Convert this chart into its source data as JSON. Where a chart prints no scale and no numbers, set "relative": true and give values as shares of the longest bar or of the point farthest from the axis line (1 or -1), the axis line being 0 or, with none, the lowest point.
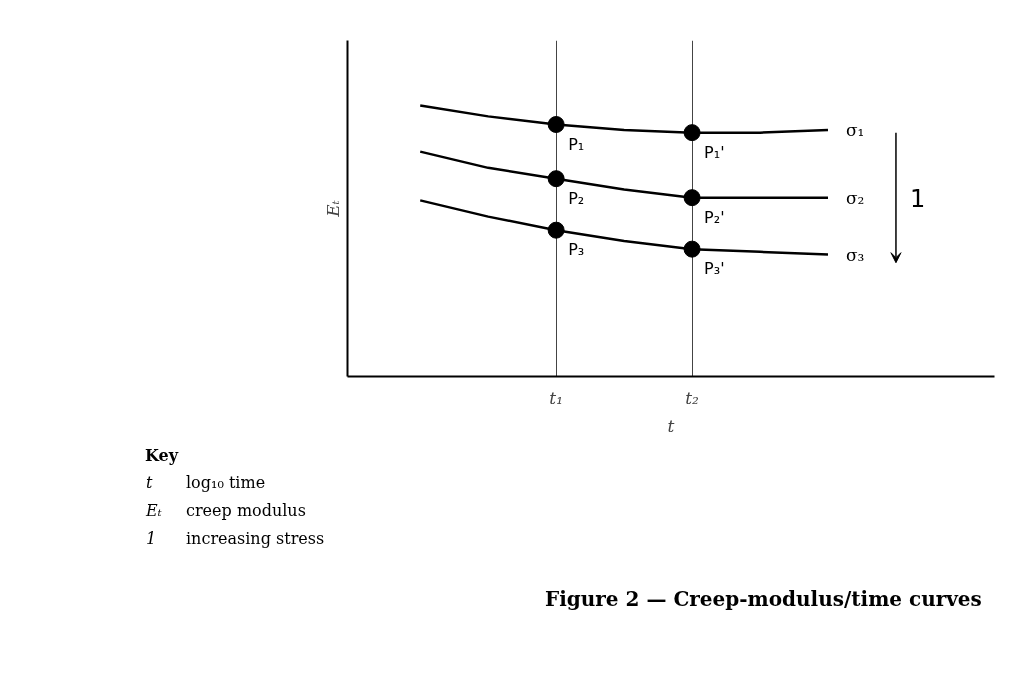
{
  "chart_data": {
    "type": "line",
    "relative": true,
    "title": "Figure 2 — Creep-modulus/time curves",
    "xlabel": "t",
    "ylabel": "Eₜ",
    "categories": [
      null,
      null,
      "t₁",
      null,
      "t₂",
      null,
      null
    ],
    "series": [
      {
        "name": "σ₁",
        "color": "#000000",
        "values": [
          1,
          0.96,
          0.93,
          0.91,
          0.9,
          0.9,
          0.91
        ]
      },
      {
        "name": "σ₂",
        "color": "#000000",
        "values": [
          0.83,
          0.77,
          0.73,
          0.69,
          0.66,
          0.66,
          0.66
        ]
      },
      {
        "name": "σ₃",
        "color": "#000000",
        "values": [
          0.65,
          0.59,
          0.54,
          0.5,
          0.47,
          0.46,
          0.45
        ]
      },
      {
        "type": "scatter",
        "marker": "circle",
        "color": "#000000",
        "x": [
          "t₁",
          "t₂",
          "t₁",
          "t₂",
          "t₁",
          "t₂"
        ],
        "values": [
          0.93,
          0.9,
          0.73,
          0.66,
          0.54,
          0.47
        ]
      }
    ],
    "annotations": [
      "1",
      "Key",
      "t\tlog₁₀ time",
      "Eₜ\tcreep modulus",
      "1\tincreasing stress",
      {
        "text": "P₁",
        "x": "t₁",
        "y": 0.93
      },
      {
        "text": "P₁'",
        "x": "t₂",
        "y": 0.9
      },
      {
        "text": "P₂",
        "x": "t₁",
        "y": 0.73
      },
      {
        "text": "P₂'",
        "x": "t₂",
        "y": 0.66
      },
      {
        "text": "P₃",
        "x": "t₁",
        "y": 0.54
      },
      {
        "text": "P₃'",
        "x": "t₂",
        "y": 0.47
      }
    ],
    "grid": "x",
    "line_style": "solid",
    "marker": "none"
  }
}
